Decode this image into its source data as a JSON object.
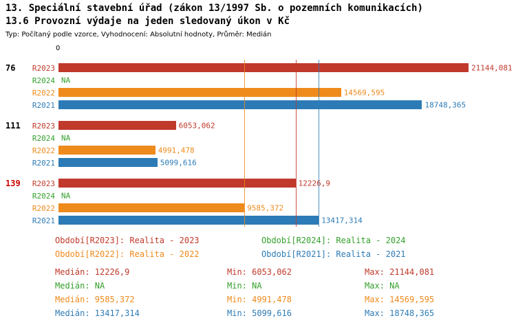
{
  "header": {
    "title": "13. Speciální stavební úřad (zákon 13/1997 Sb. o pozemních komunikacích)",
    "subtitle": "13.6 Provozní výdaje na jeden sledovaný úkon v Kč",
    "meta": "Typ: Počítaný podle vzorce, Vyhodnocení: Absolutní hodnoty, Průměr: Medián"
  },
  "axis": {
    "zero_label": "0"
  },
  "chart_data": {
    "type": "bar",
    "orientation": "horizontal",
    "value_axis_min": 0,
    "grid": false,
    "series": [
      {
        "id": "R2023",
        "label": "R2023",
        "legend": "Období[R2023]: Realita - 2023",
        "color": "#c0392b"
      },
      {
        "id": "R2024",
        "label": "R2024",
        "legend": "Období[R2024]: Realita - 2024",
        "color": "#33a02c"
      },
      {
        "id": "R2022",
        "label": "R2022",
        "legend": "Období[R2022]: Realita - 2022",
        "color": "#ef8a1c"
      },
      {
        "id": "R2021",
        "label": "R2021",
        "legend": "Období[R2021]: Realita - 2021",
        "color": "#2d7bb6"
      }
    ],
    "groups": [
      {
        "label": "76",
        "label_color": "#000000",
        "bars": [
          {
            "series": "R2023",
            "value": 21144.081,
            "value_label": "21144,081"
          },
          {
            "series": "R2024",
            "value": null,
            "value_label": "NA"
          },
          {
            "series": "R2022",
            "value": 14569.595,
            "value_label": "14569,595"
          },
          {
            "series": "R2021",
            "value": 18748.365,
            "value_label": "18748,365"
          }
        ]
      },
      {
        "label": "111",
        "label_color": "#000000",
        "bars": [
          {
            "series": "R2023",
            "value": 6053.062,
            "value_label": "6053,062"
          },
          {
            "series": "R2024",
            "value": null,
            "value_label": "NA"
          },
          {
            "series": "R2022",
            "value": 4991.478,
            "value_label": "4991,478"
          },
          {
            "series": "R2021",
            "value": 5099.616,
            "value_label": "5099,616"
          }
        ]
      },
      {
        "label": "139",
        "label_color": "#cc0000",
        "bars": [
          {
            "series": "R2023",
            "value": 12226.9,
            "value_label": "12226,9"
          },
          {
            "series": "R2024",
            "value": null,
            "value_label": "NA"
          },
          {
            "series": "R2022",
            "value": 9585.372,
            "value_label": "9585,372"
          },
          {
            "series": "R2021",
            "value": 13417.314,
            "value_label": "13417,314"
          }
        ]
      }
    ],
    "median_lines": [
      {
        "series": "R2023",
        "value": 12226.9
      },
      {
        "series": "R2022",
        "value": 9585.372
      },
      {
        "series": "R2021",
        "value": 13417.314
      }
    ]
  },
  "legend_order": [
    "R2023",
    "R2024",
    "R2022",
    "R2021"
  ],
  "stats": {
    "rows": [
      {
        "series": "R2023",
        "median": "Medián: 12226,9",
        "min": "Min: 6053,062",
        "max": "Max: 21144,081"
      },
      {
        "series": "R2024",
        "median": "Medián: NA",
        "min": "Min: NA",
        "max": "Max: NA"
      },
      {
        "series": "R2022",
        "median": "Medián: 9585,372",
        "min": "Min: 4991,478",
        "max": "Max: 14569,595"
      },
      {
        "series": "R2021",
        "median": "Medián: 13417,314",
        "min": "Min: 5099,616",
        "max": "Max: 18748,365"
      }
    ]
  }
}
